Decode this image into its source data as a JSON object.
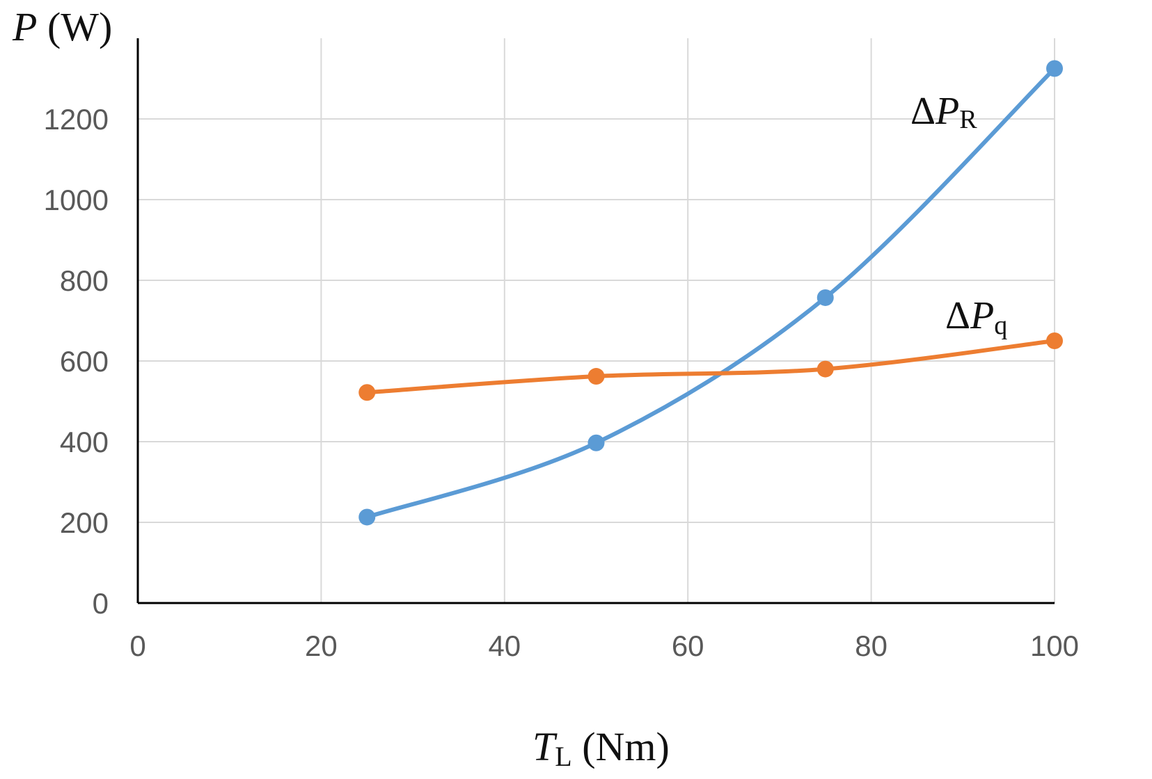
{
  "chart_data": {
    "type": "line",
    "title": "",
    "ylabel": {
      "main": "P",
      "unit": " (W)"
    },
    "xlabel": {
      "main": "T",
      "sub": "L",
      "unit": " (Nm)"
    },
    "xlim": [
      0,
      100
    ],
    "ylim": [
      0,
      1400
    ],
    "xticks": [
      0,
      20,
      40,
      60,
      80,
      100
    ],
    "yticks": [
      0,
      200,
      400,
      600,
      800,
      1000,
      1200
    ],
    "grid": true,
    "series": [
      {
        "name": "ΔP_R",
        "label": {
          "prefix": "Δ",
          "main": "P",
          "sub": "R"
        },
        "color": "#5B9BD5",
        "x": [
          25,
          50,
          75,
          100
        ],
        "y": [
          213,
          397,
          757,
          1325
        ]
      },
      {
        "name": "ΔP_q",
        "label": {
          "prefix": "Δ",
          "main": "P",
          "sub": "q"
        },
        "color": "#ED7D31",
        "x": [
          25,
          50,
          75,
          100
        ],
        "y": [
          522,
          562,
          580,
          650
        ]
      }
    ]
  }
}
